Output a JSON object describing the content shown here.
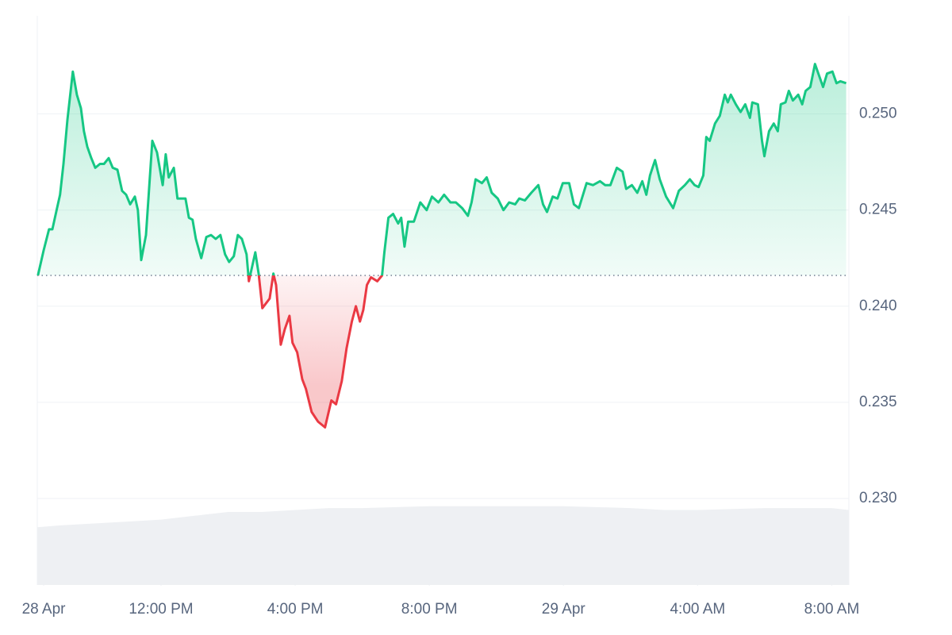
{
  "chart_data": {
    "type": "line",
    "x": [
      8.33,
      8.5,
      8.66,
      8.76,
      8.9,
      8.99,
      9.09,
      9.21,
      9.37,
      9.49,
      9.61,
      9.7,
      9.8,
      9.92,
      10.04,
      10.18,
      10.3,
      10.44,
      10.56,
      10.7,
      10.84,
      10.96,
      11.08,
      11.22,
      11.31,
      11.41,
      11.55,
      11.74,
      11.88,
      12.05,
      12.14,
      12.23,
      12.38,
      12.49,
      12.61,
      12.73,
      12.83,
      12.94,
      13.04,
      13.2,
      13.35,
      13.49,
      13.63,
      13.77,
      13.91,
      14.03,
      14.17,
      14.29,
      14.41,
      14.55,
      14.62,
      14.81,
      14.91,
      15.02,
      15.24,
      15.35,
      15.43,
      15.57,
      15.69,
      15.83,
      15.92,
      16.06,
      16.21,
      16.32,
      16.49,
      16.68,
      16.89,
      17.08,
      17.22,
      17.39,
      17.53,
      17.69,
      17.81,
      17.93,
      18.03,
      18.14,
      18.26,
      18.45,
      18.59,
      18.66,
      18.78,
      18.92,
      19.07,
      19.16,
      19.26,
      19.37,
      19.54,
      19.73,
      19.92,
      20.08,
      20.27,
      20.44,
      20.63,
      20.79,
      20.98,
      21.15,
      21.26,
      21.38,
      21.57,
      21.71,
      21.86,
      22.04,
      22.21,
      22.38,
      22.56,
      22.68,
      22.85,
      23.04,
      23.25,
      23.39,
      23.51,
      23.68,
      23.82,
      23.98,
      24.17,
      24.31,
      24.46,
      24.69,
      24.88,
      25.09,
      25.24,
      25.4,
      25.59,
      25.76,
      25.87,
      26.04,
      26.2,
      26.35,
      26.47,
      26.58,
      26.73,
      26.87,
      27.06,
      27.27,
      27.44,
      27.62,
      27.77,
      27.91,
      28.03,
      28.17,
      28.26,
      28.36,
      28.52,
      28.66,
      28.81,
      28.9,
      28.99,
      29.14,
      29.28,
      29.42,
      29.56,
      29.63,
      29.8,
      29.92,
      29.99,
      30.13,
      30.27,
      30.39,
      30.48,
      30.62,
      30.72,
      30.84,
      31.0,
      31.12,
      31.22,
      31.36,
      31.5,
      31.62,
      31.74,
      31.86,
      32.02,
      32.14,
      32.26,
      32.43
    ],
    "values": [
      0.2416,
      0.2429,
      0.244,
      0.244,
      0.2451,
      0.2458,
      0.2474,
      0.2497,
      0.2522,
      0.251,
      0.2503,
      0.2491,
      0.2483,
      0.2477,
      0.2472,
      0.2474,
      0.2474,
      0.2477,
      0.2472,
      0.2471,
      0.246,
      0.2458,
      0.2453,
      0.2457,
      0.245,
      0.2424,
      0.2437,
      0.2486,
      0.248,
      0.2463,
      0.2479,
      0.2467,
      0.2472,
      0.2456,
      0.2456,
      0.2456,
      0.2446,
      0.2445,
      0.2435,
      0.2425,
      0.2436,
      0.2437,
      0.2435,
      0.2437,
      0.2427,
      0.2423,
      0.2426,
      0.2437,
      0.2435,
      0.2427,
      0.2413,
      0.2428,
      0.2417,
      0.2399,
      0.2404,
      0.2417,
      0.2411,
      0.238,
      0.2388,
      0.2395,
      0.2381,
      0.2376,
      0.2362,
      0.2357,
      0.2345,
      0.234,
      0.2337,
      0.2351,
      0.2349,
      0.2361,
      0.2378,
      0.2392,
      0.24,
      0.2392,
      0.2398,
      0.2411,
      0.2415,
      0.2413,
      0.2416,
      0.2428,
      0.2446,
      0.2448,
      0.2443,
      0.2446,
      0.2431,
      0.2444,
      0.2444,
      0.2454,
      0.245,
      0.2457,
      0.2454,
      0.2458,
      0.2454,
      0.2454,
      0.2451,
      0.2447,
      0.2454,
      0.2466,
      0.2464,
      0.2467,
      0.2459,
      0.2456,
      0.245,
      0.2454,
      0.2453,
      0.2456,
      0.2455,
      0.2459,
      0.2463,
      0.2453,
      0.2449,
      0.2457,
      0.2456,
      0.2464,
      0.2464,
      0.2453,
      0.2451,
      0.2464,
      0.2463,
      0.2465,
      0.2463,
      0.2463,
      0.2472,
      0.247,
      0.2461,
      0.2463,
      0.2459,
      0.2465,
      0.2458,
      0.2468,
      0.2476,
      0.2466,
      0.2457,
      0.2451,
      0.246,
      0.2463,
      0.2466,
      0.2463,
      0.2462,
      0.2468,
      0.2488,
      0.2486,
      0.2495,
      0.2499,
      0.251,
      0.2506,
      0.251,
      0.2505,
      0.2501,
      0.2505,
      0.2498,
      0.2506,
      0.2505,
      0.2486,
      0.2478,
      0.2491,
      0.2495,
      0.2491,
      0.2505,
      0.2506,
      0.2512,
      0.2507,
      0.251,
      0.2505,
      0.2512,
      0.2514,
      0.2526,
      0.252,
      0.2514,
      0.2521,
      0.2522,
      0.2516,
      0.2517,
      0.2516
    ],
    "baseline": 0.2416,
    "up_color": "#16c784",
    "down_color": "#ea3943",
    "volume": {
      "color": "#eef0f3",
      "x": [
        8.31,
        9,
        10,
        11,
        12,
        13,
        14,
        15,
        16,
        17,
        18,
        20,
        22,
        24,
        26,
        27,
        28,
        30,
        32,
        32.51
      ],
      "values": [
        0.2285,
        0.2286,
        0.2287,
        0.2288,
        0.2289,
        0.2291,
        0.2293,
        0.2293,
        0.2294,
        0.2295,
        0.2295,
        0.2296,
        0.2296,
        0.2296,
        0.2295,
        0.2294,
        0.2294,
        0.2295,
        0.2295,
        0.2294
      ]
    },
    "xlim": [
      8.31,
      32.51
    ],
    "xticks": [
      {
        "value": 8.5,
        "label": "28 Apr"
      },
      {
        "value": 12,
        "label": "12:00 PM"
      },
      {
        "value": 16,
        "label": "4:00 PM"
      },
      {
        "value": 20,
        "label": "8:00 PM"
      },
      {
        "value": 24,
        "label": "29 Apr"
      },
      {
        "value": 28,
        "label": "4:00 AM"
      },
      {
        "value": 32,
        "label": "8:00 AM"
      }
    ],
    "ylim": [
      0.2255,
      0.2551
    ],
    "yticks": [
      {
        "value": 0.25,
        "label": "0.250"
      },
      0.245,
      {
        "value": 0.24,
        "label": "0.240"
      },
      0.235,
      {
        "value": 0.23,
        "label": "0.230"
      }
    ],
    "grid": true
  }
}
